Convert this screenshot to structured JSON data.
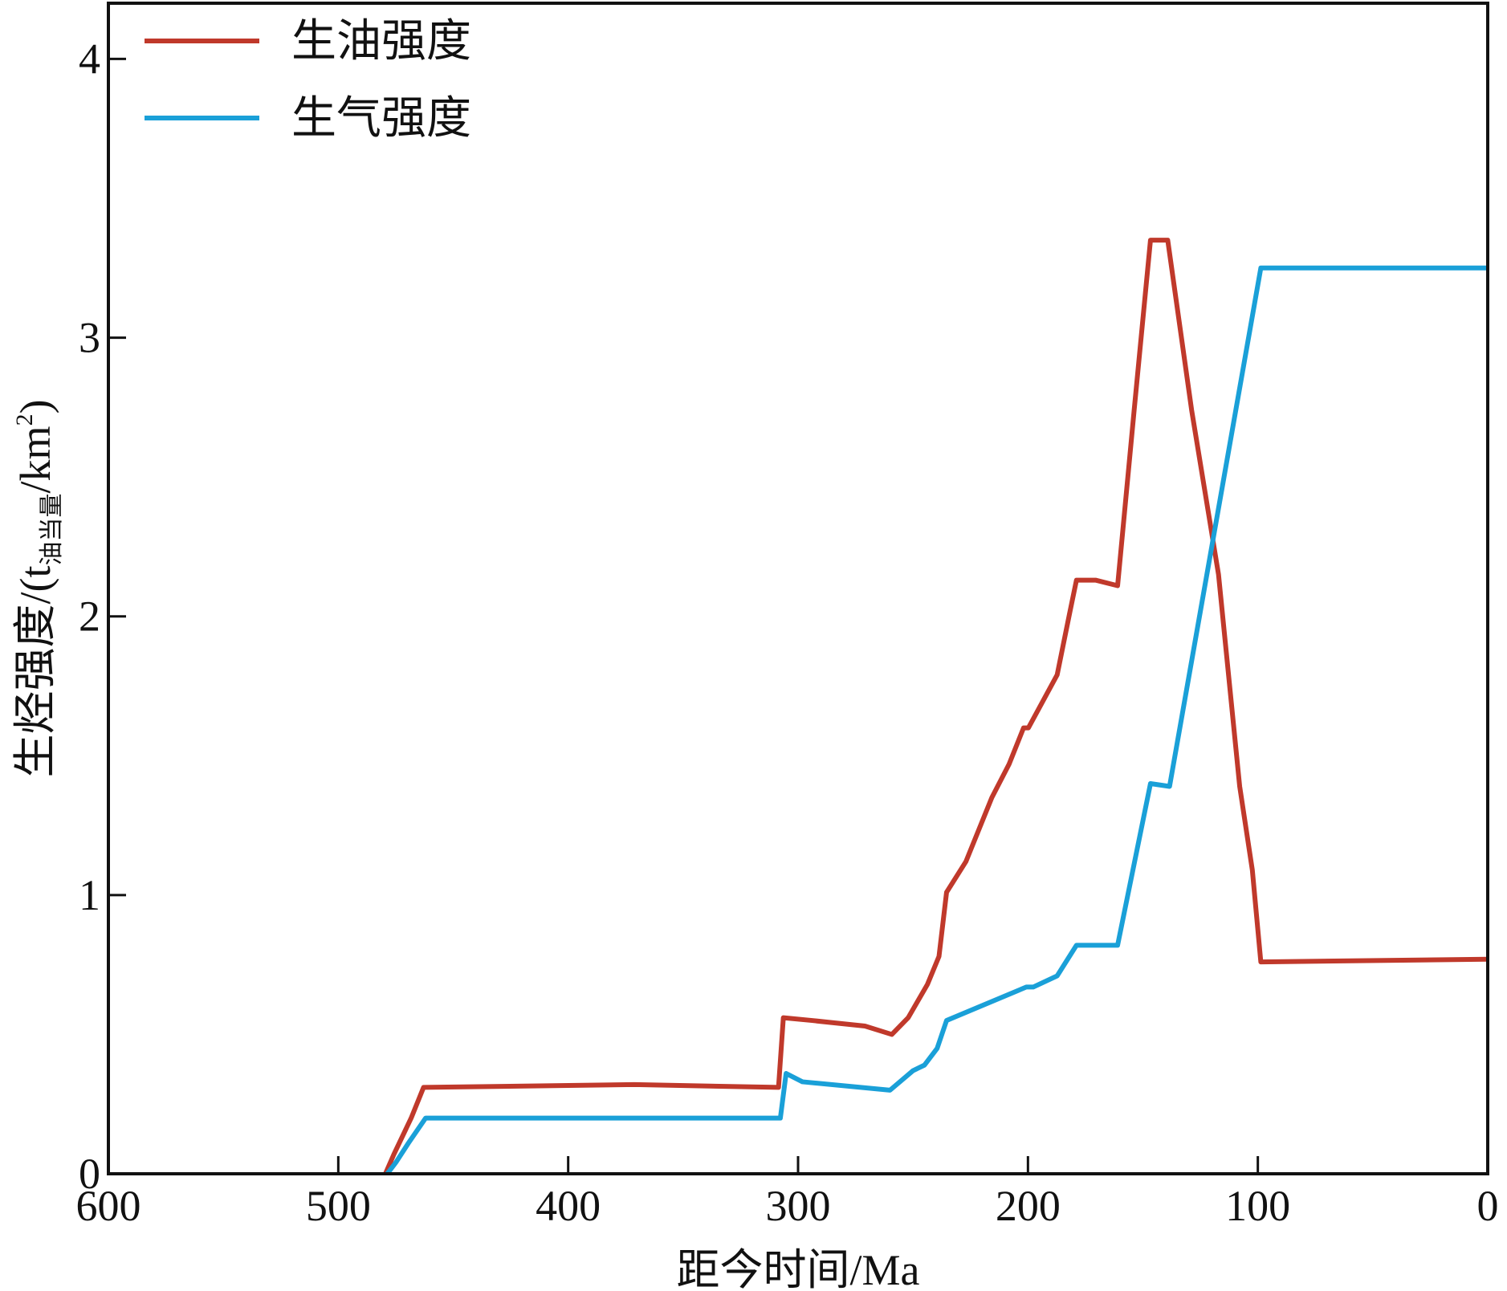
{
  "chart_data": {
    "type": "line",
    "x_label": "距今时间/Ma",
    "y_label": {
      "main": "生烃强度/(t",
      "sub": "油当量",
      "mid": "/km",
      "sup": "2",
      "end": ")"
    },
    "xlim": [
      600,
      0
    ],
    "ylim": [
      0,
      4.2
    ],
    "xticks": [
      600,
      500,
      400,
      300,
      200,
      100,
      0
    ],
    "yticks": [
      0,
      1,
      2,
      3,
      4
    ],
    "legend": "upper left",
    "series": [
      {
        "name": "生油强度",
        "color": "#c0392b",
        "x": [
          479.5,
          475.8,
          468.3,
          462.9,
          371.2,
          308.5,
          306.4,
          293.9,
          270.9,
          259.2,
          252.1,
          243.7,
          238.7,
          235.4,
          227,
          215.7,
          208.2,
          201.9,
          199.8,
          187.3,
          181.9,
          178.9,
          170.6,
          161,
          153.8,
          146.7,
          139.2,
          128.8,
          117.1,
          107.9,
          102.4,
          98.7,
          0
        ],
        "values": [
          0,
          0.07,
          0.2,
          0.31,
          0.32,
          0.31,
          0.56,
          0.55,
          0.53,
          0.5,
          0.56,
          0.68,
          0.78,
          1.01,
          1.12,
          1.35,
          1.47,
          1.6,
          1.6,
          1.79,
          2.01,
          2.13,
          2.13,
          2.11,
          2.74,
          3.35,
          3.35,
          2.74,
          2.15,
          1.39,
          1.09,
          0.76,
          0.77
        ]
      },
      {
        "name": "生气强度",
        "color": "#1aa0d8",
        "x": [
          478.7,
          475,
          469.5,
          462,
          307.7,
          305.2,
          298.1,
          260,
          250,
          245,
          239.5,
          235.4,
          200.7,
          197.7,
          187.3,
          178.9,
          161,
          146.7,
          138.4,
          98.7,
          0
        ],
        "values": [
          0,
          0.04,
          0.11,
          0.2,
          0.2,
          0.36,
          0.33,
          0.3,
          0.37,
          0.39,
          0.45,
          0.55,
          0.67,
          0.67,
          0.71,
          0.82,
          0.82,
          1.4,
          1.39,
          3.25,
          3.25
        ]
      }
    ]
  }
}
